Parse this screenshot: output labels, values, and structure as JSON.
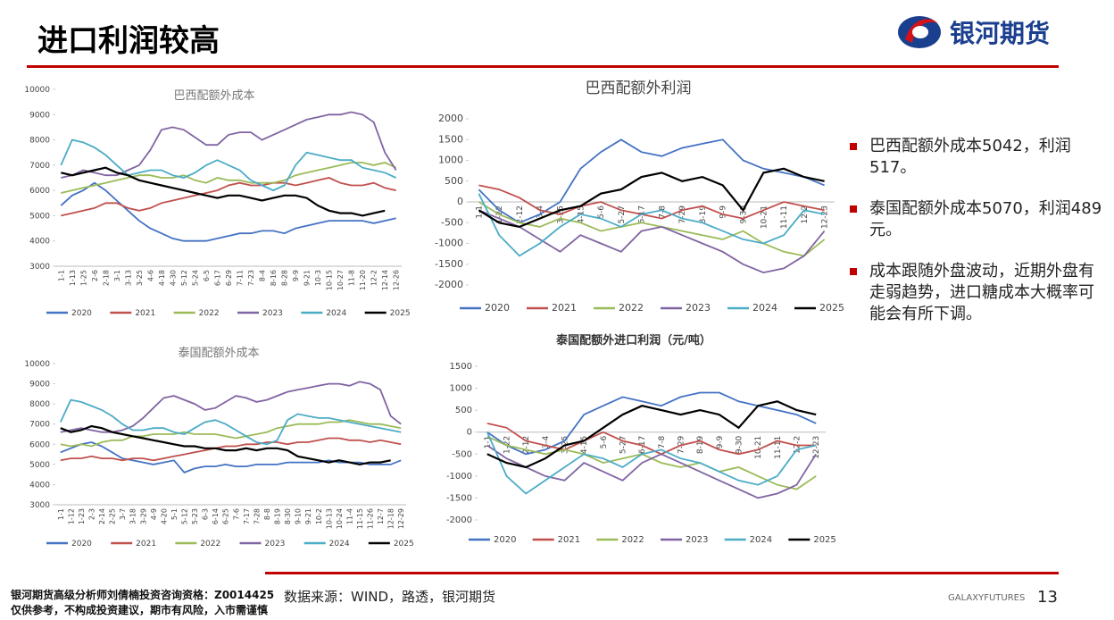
{
  "header": {
    "title": "进口利润较高",
    "logo": "银河期货"
  },
  "bullets": [
    "巴西配额外成本5042，利润517。",
    "泰国配额外成本5070，利润489元。",
    "成本跟随外盘波动，近期外盘有走弱趋势，进口糖成本大概率可能会有所下调。"
  ],
  "footer": {
    "analyst": "银河期货高级分析师刘倩楠投资咨询资格：Z0014425",
    "disclaimer": "仅供参考，不构成投资建议，期市有风险，入市需谨慎",
    "source": "数据来源：WIND，路透，银河期货",
    "brand": "GALAXYFUTURES",
    "page": "13"
  },
  "chart_data": [
    {
      "type": "line",
      "title": "巴西配额外成本",
      "ylim": [
        3000,
        10000
      ],
      "yticks": [
        3000,
        4000,
        5000,
        6000,
        7000,
        8000,
        9000,
        10000
      ],
      "categories": [
        "1-1",
        "1-13",
        "1-25",
        "2-6",
        "2-18",
        "3-1",
        "3-13",
        "3-25",
        "4-6",
        "4-18",
        "4-30",
        "5-12",
        "5-24",
        "6-5",
        "6-17",
        "6-29",
        "7-11",
        "7-23",
        "8-4",
        "8-16",
        "8-28",
        "9-9",
        "9-21",
        "10-3",
        "10-15",
        "10-27",
        "11-8",
        "11-20",
        "12-2",
        "12-14",
        "12-26"
      ],
      "series": [
        {
          "name": "2020",
          "color": "#4472c4",
          "values": [
            5400,
            5800,
            6000,
            6300,
            6000,
            5600,
            5200,
            4800,
            4500,
            4300,
            4100,
            4000,
            4000,
            4000,
            4100,
            4200,
            4300,
            4300,
            4400,
            4400,
            4300,
            4500,
            4600,
            4700,
            4800,
            4800,
            4800,
            4800,
            4700,
            4800,
            4900
          ]
        },
        {
          "name": "2021",
          "color": "#c0504d",
          "values": [
            5000,
            5100,
            5200,
            5300,
            5500,
            5500,
            5300,
            5200,
            5300,
            5500,
            5600,
            5700,
            5800,
            5900,
            6000,
            6200,
            6300,
            6200,
            6200,
            6300,
            6300,
            6200,
            6300,
            6400,
            6500,
            6300,
            6200,
            6200,
            6300,
            6100,
            6000
          ]
        },
        {
          "name": "2022",
          "color": "#9bbb59",
          "values": [
            5900,
            6000,
            6100,
            6200,
            6300,
            6400,
            6500,
            6600,
            6600,
            6500,
            6500,
            6600,
            6400,
            6300,
            6500,
            6400,
            6400,
            6300,
            6300,
            6300,
            6400,
            6600,
            6700,
            6800,
            6900,
            7000,
            7100,
            7100,
            7000,
            7100,
            6900
          ]
        },
        {
          "name": "2023",
          "color": "#8064a2",
          "values": [
            6500,
            6600,
            6800,
            6700,
            6600,
            6600,
            6800,
            7000,
            7600,
            8400,
            8500,
            8400,
            8100,
            7800,
            7800,
            8200,
            8300,
            8300,
            8000,
            8200,
            8400,
            8600,
            8800,
            8900,
            9000,
            9000,
            9100,
            9000,
            8700,
            7500,
            6800
          ]
        },
        {
          "name": "2024",
          "color": "#4bacc6",
          "values": [
            7000,
            8000,
            7900,
            7700,
            7400,
            7000,
            6600,
            6700,
            6800,
            6800,
            6600,
            6500,
            6700,
            7000,
            7200,
            7000,
            6800,
            6400,
            6200,
            6000,
            6200,
            7000,
            7500,
            7400,
            7300,
            7200,
            7200,
            6900,
            6800,
            6700,
            6500
          ]
        },
        {
          "name": "2025",
          "color": "#000000",
          "values": [
            6700,
            6600,
            6700,
            6800,
            6900,
            6700,
            6600,
            6400,
            6300,
            6200,
            6100,
            6000,
            5900,
            5800,
            5700,
            5800,
            5800,
            5700,
            5600,
            5700,
            5800,
            5800,
            5700,
            5400,
            5200,
            5100,
            5100,
            5000,
            5100,
            5200,
            null
          ]
        }
      ]
    },
    {
      "type": "line",
      "title": "巴西配额外利润",
      "ylim": [
        -2000,
        2000
      ],
      "yticks": [
        -2000,
        -1500,
        -1000,
        -500,
        0,
        500,
        1000,
        1500,
        2000
      ],
      "categories": [
        "1-1",
        "1-22",
        "2-12",
        "3-4",
        "3-25",
        "4-15",
        "5-6",
        "5-27",
        "6-17",
        "7-8",
        "7-29",
        "8-19",
        "9-9",
        "9-30",
        "10-21",
        "11-11",
        "12-2",
        "12-23"
      ],
      "series": [
        {
          "name": "2020",
          "color": "#4472c4",
          "values": [
            300,
            -200,
            -500,
            -300,
            0,
            800,
            1200,
            1500,
            1200,
            1100,
            1300,
            1400,
            1500,
            1000,
            800,
            700,
            600,
            400
          ]
        },
        {
          "name": "2021",
          "color": "#c0504d",
          "values": [
            400,
            300,
            100,
            -200,
            -300,
            -100,
            0,
            -200,
            -300,
            -400,
            -200,
            -100,
            -300,
            -400,
            -200,
            0,
            -100,
            -200
          ]
        },
        {
          "name": "2022",
          "color": "#9bbb59",
          "values": [
            0,
            -300,
            -500,
            -600,
            -400,
            -500,
            -700,
            -600,
            -500,
            -600,
            -700,
            -800,
            -900,
            -700,
            -1000,
            -1200,
            -1300,
            -900
          ]
        },
        {
          "name": "2023",
          "color": "#8064a2",
          "values": [
            -200,
            -400,
            -600,
            -900,
            -1200,
            -800,
            -1000,
            -1200,
            -700,
            -600,
            -800,
            -1000,
            -1200,
            -1500,
            -1700,
            -1600,
            -1300,
            -700
          ]
        },
        {
          "name": "2024",
          "color": "#4bacc6",
          "values": [
            200,
            -800,
            -1300,
            -1000,
            -600,
            -300,
            -400,
            -600,
            -300,
            -200,
            -400,
            -500,
            -700,
            -900,
            -1000,
            -800,
            -200,
            -300
          ]
        },
        {
          "name": "2025",
          "color": "#000000",
          "values": [
            -200,
            -500,
            -600,
            -400,
            -200,
            -100,
            200,
            300,
            600,
            700,
            500,
            600,
            400,
            -200,
            700,
            800,
            600,
            500
          ]
        }
      ]
    },
    {
      "type": "line",
      "title": "泰国配额外成本",
      "ylim": [
        3000,
        10000
      ],
      "yticks": [
        3000,
        4000,
        5000,
        6000,
        7000,
        8000,
        9000,
        10000
      ],
      "categories": [
        "1-1",
        "1-12",
        "1-23",
        "2-3",
        "2-14",
        "2-25",
        "3-7",
        "3-18",
        "3-29",
        "4-9",
        "4-20",
        "5-1",
        "5-12",
        "5-23",
        "6-3",
        "6-14",
        "6-25",
        "7-6",
        "7-17",
        "7-28",
        "8-8",
        "8-19",
        "8-30",
        "9-10",
        "9-21",
        "10-2",
        "10-13",
        "10-24",
        "11-4",
        "11-15",
        "11-26",
        "12-7",
        "12-18",
        "12-29"
      ],
      "series": [
        {
          "name": "2020",
          "color": "#4472c4",
          "values": [
            5600,
            5800,
            6000,
            6100,
            5900,
            5600,
            5300,
            5200,
            5100,
            5000,
            5100,
            5200,
            4600,
            4800,
            4900,
            4900,
            5000,
            4900,
            4900,
            5000,
            5000,
            5000,
            5100,
            5100,
            5100,
            5100,
            5200,
            5100,
            5100,
            5100,
            5000,
            5000,
            5000,
            5200
          ]
        },
        {
          "name": "2021",
          "color": "#c0504d",
          "values": [
            5200,
            5300,
            5300,
            5400,
            5300,
            5300,
            5200,
            5300,
            5300,
            5200,
            5300,
            5400,
            5500,
            5600,
            5700,
            5800,
            5900,
            5900,
            6000,
            6000,
            6100,
            6100,
            6000,
            6100,
            6100,
            6200,
            6300,
            6300,
            6200,
            6200,
            6100,
            6200,
            6100,
            6000
          ]
        },
        {
          "name": "2022",
          "color": "#9bbb59",
          "values": [
            6000,
            5900,
            6000,
            5900,
            6100,
            6200,
            6200,
            6400,
            6400,
            6500,
            6500,
            6500,
            6600,
            6500,
            6500,
            6500,
            6400,
            6300,
            6400,
            6500,
            6600,
            6800,
            6900,
            7000,
            7000,
            7000,
            7100,
            7100,
            7200,
            7100,
            7000,
            7000,
            6900,
            6800
          ]
        },
        {
          "name": "2023",
          "color": "#8064a2",
          "values": [
            6600,
            6700,
            6800,
            6700,
            6600,
            6600,
            6700,
            6900,
            7300,
            7800,
            8300,
            8400,
            8200,
            8000,
            7700,
            7800,
            8100,
            8400,
            8300,
            8100,
            8200,
            8400,
            8600,
            8700,
            8800,
            8900,
            9000,
            9000,
            8900,
            9100,
            9000,
            8700,
            7400,
            7000
          ]
        },
        {
          "name": "2024",
          "color": "#4bacc6",
          "values": [
            7100,
            8200,
            8100,
            7900,
            7700,
            7400,
            7000,
            6700,
            6700,
            6800,
            6800,
            6600,
            6500,
            6800,
            7100,
            7200,
            7000,
            6700,
            6400,
            6100,
            6000,
            6200,
            7200,
            7500,
            7400,
            7300,
            7300,
            7200,
            7100,
            7000,
            6900,
            6800,
            6700,
            6600
          ]
        },
        {
          "name": "2025",
          "color": "#000000",
          "values": [
            6800,
            6600,
            6700,
            6900,
            6800,
            6600,
            6500,
            6400,
            6300,
            6200,
            6100,
            6000,
            5900,
            5900,
            5800,
            5800,
            5700,
            5700,
            5800,
            5700,
            5800,
            5800,
            5700,
            5400,
            5300,
            5200,
            5100,
            5200,
            5100,
            5000,
            5100,
            5100,
            5200,
            null
          ]
        }
      ]
    },
    {
      "type": "line",
      "title": "泰国配额外进口利润（元/吨）",
      "ylim": [
        -2000,
        1500
      ],
      "yticks": [
        -2000,
        -1500,
        -1000,
        -500,
        0,
        500,
        1000,
        1500
      ],
      "categories": [
        "1-1",
        "1-22",
        "2-12",
        "3-4",
        "3-25",
        "4-15",
        "5-6",
        "5-27",
        "6-17",
        "7-8",
        "7-29",
        "8-19",
        "9-9",
        "9-30",
        "10-21",
        "11-11",
        "12-2",
        "12-23"
      ],
      "series": [
        {
          "name": "2020",
          "color": "#4472c4",
          "values": [
            0,
            -300,
            -500,
            -400,
            -200,
            400,
            600,
            800,
            700,
            600,
            800,
            900,
            900,
            700,
            600,
            500,
            400,
            200
          ]
        },
        {
          "name": "2021",
          "color": "#c0504d",
          "values": [
            200,
            100,
            -200,
            -300,
            -400,
            -200,
            0,
            -200,
            -300,
            -500,
            -300,
            -200,
            -400,
            -500,
            -400,
            -200,
            -300,
            -300
          ]
        },
        {
          "name": "2022",
          "color": "#9bbb59",
          "values": [
            -100,
            -300,
            -400,
            -500,
            -400,
            -500,
            -700,
            -600,
            -500,
            -700,
            -800,
            -700,
            -900,
            -800,
            -1000,
            -1200,
            -1300,
            -1000
          ]
        },
        {
          "name": "2023",
          "color": "#8064a2",
          "values": [
            -300,
            -600,
            -800,
            -1000,
            -1100,
            -700,
            -900,
            -1100,
            -700,
            -500,
            -700,
            -900,
            -1100,
            -1300,
            -1500,
            -1400,
            -1200,
            -500
          ]
        },
        {
          "name": "2024",
          "color": "#4bacc6",
          "values": [
            0,
            -1000,
            -1400,
            -1100,
            -800,
            -500,
            -600,
            -800,
            -500,
            -400,
            -600,
            -700,
            -900,
            -1100,
            -1200,
            -1000,
            -400,
            -300
          ]
        },
        {
          "name": "2025",
          "color": "#000000",
          "values": [
            -500,
            -700,
            -800,
            -600,
            -300,
            -200,
            100,
            400,
            600,
            500,
            400,
            500,
            400,
            100,
            600,
            700,
            500,
            400
          ]
        }
      ]
    }
  ]
}
